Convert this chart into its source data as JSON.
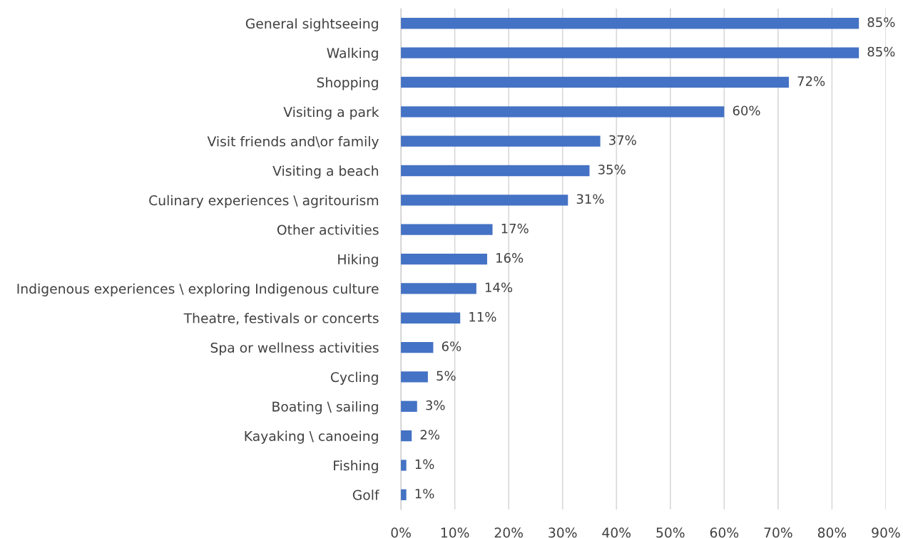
{
  "chart_data": {
    "type": "bar",
    "orientation": "horizontal",
    "categories": [
      "General sightseeing",
      "Walking",
      "Shopping",
      "Visiting a park",
      "Visit friends and\\or family",
      "Visiting a beach",
      "Culinary experiences \\ agritourism",
      "Other activities",
      "Hiking",
      "Indigenous experiences \\ exploring Indigenous culture",
      "Theatre, festivals or concerts",
      "Spa or wellness activities",
      "Cycling",
      "Boating \\ sailing",
      "Kayaking \\ canoeing",
      "Fishing",
      "Golf"
    ],
    "values": [
      85,
      85,
      72,
      60,
      37,
      35,
      31,
      17,
      16,
      14,
      11,
      6,
      5,
      3,
      2,
      1,
      1
    ],
    "value_labels": [
      "85%",
      "85%",
      "72%",
      "60%",
      "37%",
      "35%",
      "31%",
      "17%",
      "16%",
      "14%",
      "11%",
      "6%",
      "5%",
      "3%",
      "2%",
      "1%",
      "1%"
    ],
    "color": "#4472c4",
    "xlim": [
      0,
      90
    ],
    "xticks": [
      {
        "value": 0,
        "label": "0%"
      },
      {
        "value": 10,
        "label": "10%"
      },
      {
        "value": 20,
        "label": "20%"
      },
      {
        "value": 30,
        "label": "30%"
      },
      {
        "value": 40,
        "label": "40%"
      },
      {
        "value": 50,
        "label": "50%"
      },
      {
        "value": 60,
        "label": "60%"
      },
      {
        "value": 70,
        "label": "70%"
      },
      {
        "value": 80,
        "label": "80%"
      },
      {
        "value": 90,
        "label": "90%"
      }
    ],
    "grid": "x"
  }
}
